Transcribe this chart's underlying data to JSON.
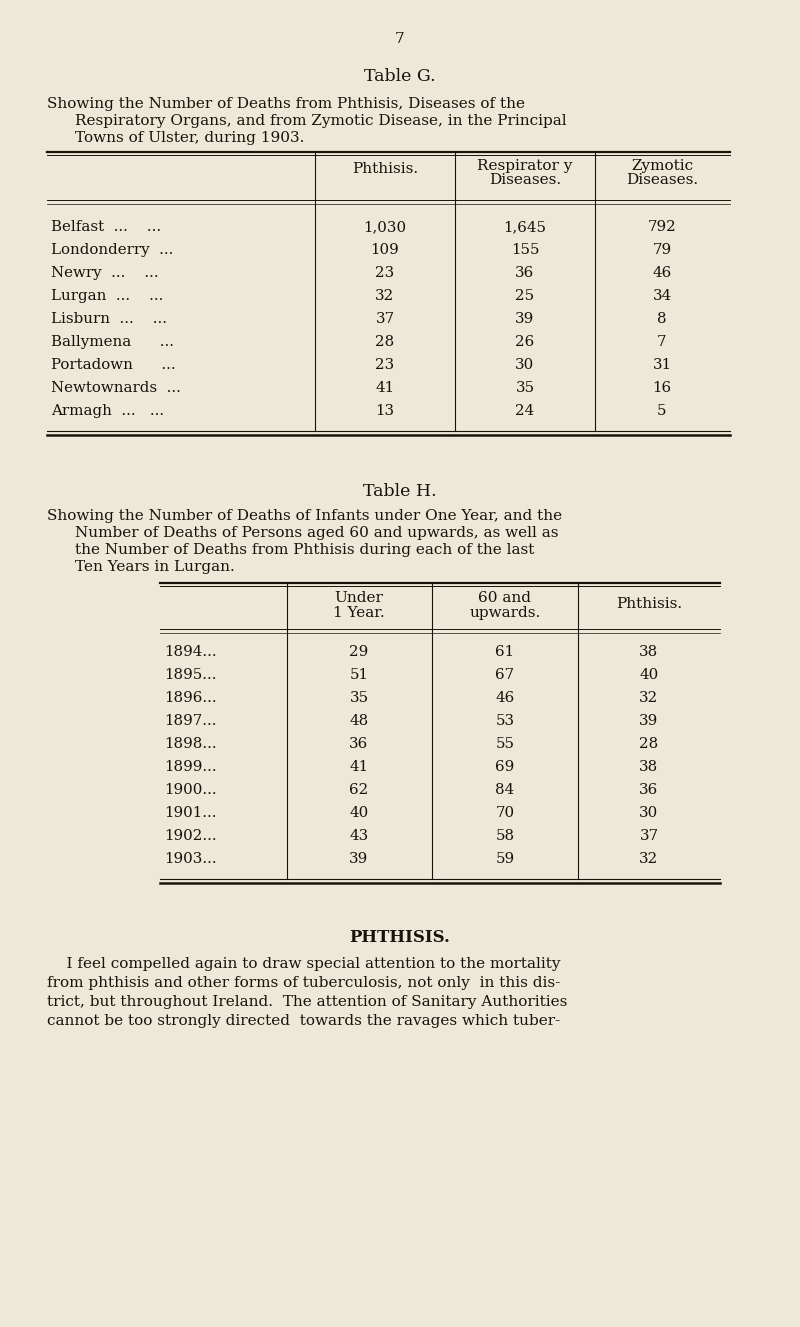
{
  "bg_color": "#ede8d8",
  "text_color": "#1a1208",
  "page_number": "7",
  "table_g_title": "Table G.",
  "table_g_subtitle_lines": [
    "Showing the Number of Deaths from Phthisis, Diseases of the",
    "Respiratory Organs, and from Zymotic Disease, in the Principal",
    "Towns of Ulster, during 1903."
  ],
  "table_g_col_headers": [
    [
      "Phthisis."
    ],
    [
      "Respirator y",
      "Diseases."
    ],
    [
      "Zymotic",
      "Diseases."
    ]
  ],
  "table_g_rows": [
    [
      "Belfast  ...    ...",
      "1,030",
      "1,645",
      "792"
    ],
    [
      "Londonderry  ...",
      "109",
      "155",
      "79"
    ],
    [
      "Newry  ...    ...",
      "23",
      "36",
      "46"
    ],
    [
      "Lurgan  ...    ...",
      "32",
      "25",
      "34"
    ],
    [
      "Lisburn  ...    ...",
      "37",
      "39",
      "8"
    ],
    [
      "Ballymena      ...",
      "28",
      "26",
      "7"
    ],
    [
      "Portadown      ...",
      "23",
      "30",
      "31"
    ],
    [
      "Newtownards  ...",
      "41",
      "35",
      "16"
    ],
    [
      "Armagh  ...   ...",
      "13",
      "24",
      "5"
    ]
  ],
  "table_h_title": "Table H.",
  "table_h_subtitle_lines": [
    "Showing the Number of Deaths of Infants under One Year, and the",
    "Number of Deaths of Persons aged 60 and upwards, as well as",
    "the Number of Deaths from Phthisis during each of the last",
    "Ten Years in Lurgan."
  ],
  "table_h_col_headers": [
    [
      "Under",
      "1 Year."
    ],
    [
      "60 and",
      "upwards."
    ],
    [
      "Phthisis."
    ]
  ],
  "table_h_rows": [
    [
      "1894...",
      "29",
      "61",
      "38"
    ],
    [
      "1895...",
      "51",
      "67",
      "40"
    ],
    [
      "1896...",
      "35",
      "46",
      "32"
    ],
    [
      "1897...",
      "48",
      "53",
      "39"
    ],
    [
      "1898...",
      "36",
      "55",
      "28"
    ],
    [
      "1899...",
      "41",
      "69",
      "38"
    ],
    [
      "1900...",
      "62",
      "84",
      "36"
    ],
    [
      "1901...",
      "40",
      "70",
      "30"
    ],
    [
      "1902...",
      "43",
      "58",
      "37"
    ],
    [
      "1903...",
      "39",
      "59",
      "32"
    ]
  ],
  "phthisis_title": "PHTHISIS.",
  "phthisis_para_lines": [
    "    I feel compelled again to draw special attention to the mortality",
    "from phthisis and other forms of tuberculosis, not only  in this dis-",
    "trict, but throughout Ireland.  The attention of Sanitary Authorities",
    "cannot be too strongly directed  towards the ravages which tuber-"
  ]
}
